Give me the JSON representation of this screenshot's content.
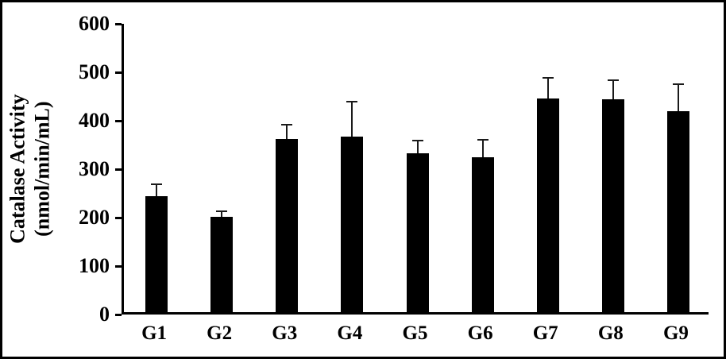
{
  "figure": {
    "background_color": "#ffffff",
    "frame_color": "#000000"
  },
  "chart_data": {
    "type": "bar",
    "title": "",
    "xlabel": "",
    "ylabel_line1": "Catalase Activity",
    "ylabel_line2": "(nmol/min/mL)",
    "categories": [
      "G1",
      "G2",
      "G3",
      "G4",
      "G5",
      "G6",
      "G7",
      "G8",
      "G9"
    ],
    "values": [
      240,
      196,
      357,
      363,
      328,
      319,
      441,
      439,
      414
    ],
    "errors_plus": [
      26,
      14,
      32,
      73,
      28,
      38,
      44,
      41,
      58
    ],
    "ylim": [
      0,
      600
    ],
    "ytick_step": 100,
    "yticks": [
      "0",
      "100",
      "200",
      "300",
      "400",
      "500",
      "600"
    ],
    "bar_color": "#000000",
    "error_bar_color": "#1a1a1a",
    "grid": "off",
    "legend": "none"
  }
}
